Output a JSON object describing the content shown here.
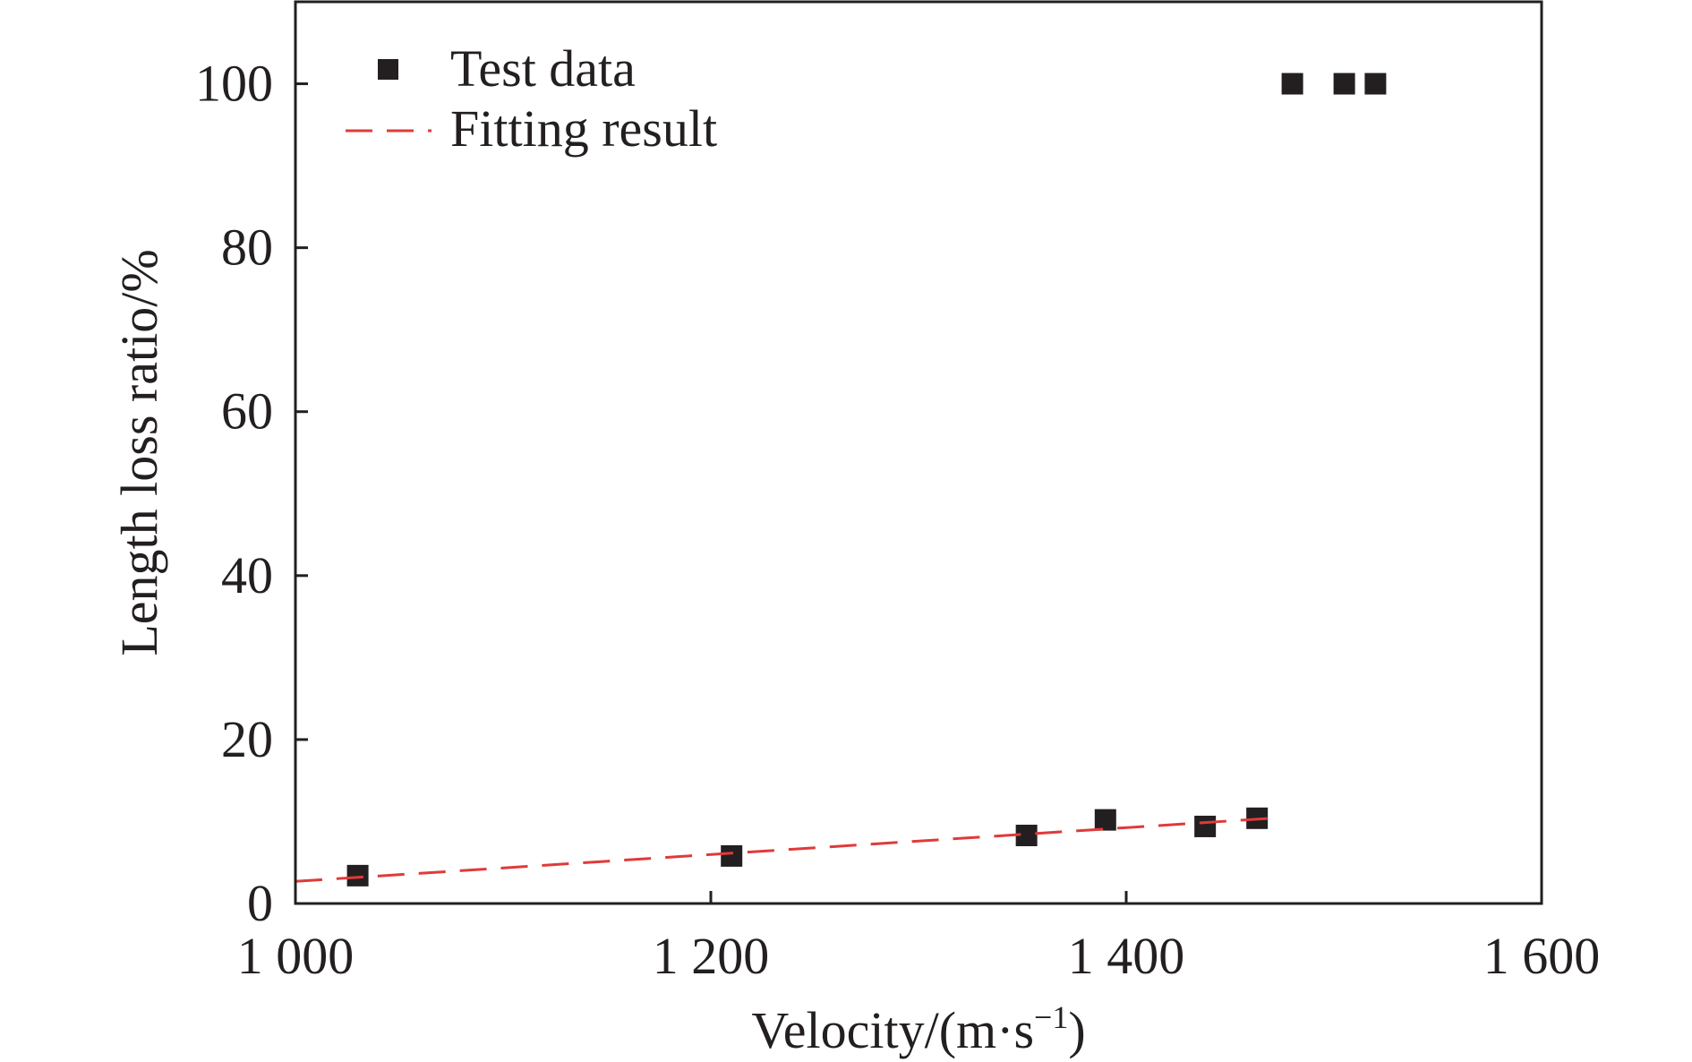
{
  "chart_data": {
    "type": "scatter",
    "xlabel": "Velocity/(m·s",
    "xlabel_sup": "−1",
    "xlabel_close": ")",
    "ylabel": "Length loss ratio/%",
    "xlim": [
      1000,
      1600
    ],
    "ylim": [
      0,
      110
    ],
    "x_ticks": [
      1000,
      1200,
      1400,
      1600
    ],
    "x_tick_labels": [
      "1 000",
      "1 200",
      "1 400",
      "1 600"
    ],
    "y_ticks": [
      0,
      20,
      40,
      60,
      80,
      100
    ],
    "y_tick_labels": [
      "0",
      "20",
      "40",
      "60",
      "80",
      "100"
    ],
    "grid": false,
    "legend_position": "top-left",
    "series": [
      {
        "name": "Test data",
        "kind": "scatter",
        "color": "#231f20",
        "points": [
          {
            "x": 1030,
            "y": 3.4
          },
          {
            "x": 1210,
            "y": 5.8
          },
          {
            "x": 1352,
            "y": 8.3
          },
          {
            "x": 1390,
            "y": 10.2
          },
          {
            "x": 1438,
            "y": 9.4
          },
          {
            "x": 1463,
            "y": 10.4
          },
          {
            "x": 1480,
            "y": 100
          },
          {
            "x": 1505,
            "y": 100
          },
          {
            "x": 1520,
            "y": 100
          }
        ]
      },
      {
        "name": "Fitting result",
        "kind": "line",
        "style": "dashed",
        "color": "#e03a3a",
        "points": [
          {
            "x": 1000,
            "y": 2.7
          },
          {
            "x": 1470,
            "y": 10.4
          }
        ]
      }
    ]
  }
}
